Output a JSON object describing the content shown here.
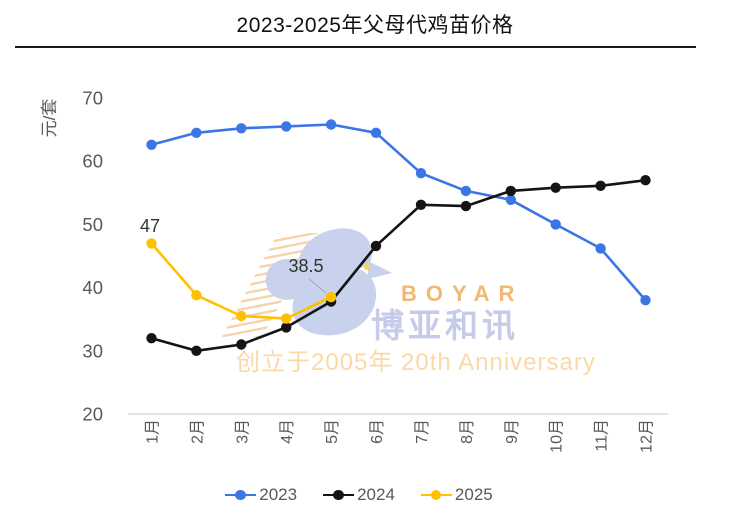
{
  "chart_data": {
    "type": "line",
    "title": "2023-2025年父母代鸡苗价格",
    "ylabel": "元/套",
    "xlabel": "",
    "ylim": [
      20,
      70
    ],
    "ytick_step": 10,
    "yticks": [
      20,
      30,
      40,
      50,
      60,
      70
    ],
    "grid": false,
    "legend_position": "bottom",
    "categories": [
      "1月",
      "2月",
      "3月",
      "4月",
      "5月",
      "6月",
      "7月",
      "8月",
      "9月",
      "10月",
      "11月",
      "12月"
    ],
    "series": [
      {
        "name": "2023",
        "color": "#3C76E6",
        "values": [
          62.6,
          64.5,
          65.2,
          65.5,
          65.8,
          64.5,
          58.1,
          55.3,
          53.9,
          50.0,
          46.2,
          38.0
        ]
      },
      {
        "name": "2024",
        "color": "#141414",
        "values": [
          32.0,
          30.0,
          31.0,
          33.7,
          37.8,
          46.6,
          53.1,
          52.9,
          55.3,
          55.8,
          56.1,
          57.0
        ]
      },
      {
        "name": "2025",
        "color": "#FFC000",
        "values": [
          47.0,
          38.8,
          35.5,
          35.1,
          38.5
        ]
      }
    ],
    "annotations": [
      {
        "text": "47",
        "series": "2025",
        "category": "1月",
        "x": 150,
        "y": 232
      },
      {
        "text": "38.5",
        "series": "2025",
        "category": "5月",
        "x": 306,
        "y": 272,
        "leader": {
          "x1": 309,
          "y1": 279,
          "x2": 326,
          "y2": 293
        }
      }
    ],
    "axis_color": "#D9D9D9",
    "tick_label_color": "#595959",
    "annotation_color": "#333333"
  },
  "watermark": {
    "brand_en": "BOYAR",
    "brand_cn": "博亚和讯",
    "tagline": "创立于2005年 20th Anniversary"
  }
}
